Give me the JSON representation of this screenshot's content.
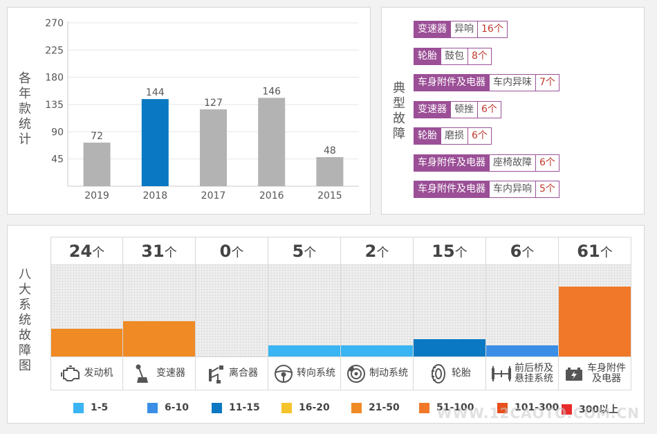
{
  "colors": {
    "bar_default": "#b3b3b3",
    "bar_highlight": "#0a78c2",
    "fault_tag": "#9b4f96",
    "fault_count": "#c0392b"
  },
  "chart_data": [
    {
      "type": "bar",
      "title": "各年款统计",
      "categories": [
        "2019",
        "2018",
        "2017",
        "2016",
        "2015"
      ],
      "values": [
        72,
        144,
        127,
        146,
        48
      ],
      "highlight": "2018",
      "ylim": [
        0,
        270
      ],
      "yticks": [
        45,
        90,
        135,
        180,
        225,
        270
      ],
      "xlabel": "",
      "ylabel": "",
      "grid": true
    },
    {
      "type": "bar",
      "title": "八大系统故障图",
      "categories": [
        "发动机",
        "变速器",
        "离合器",
        "转向系统",
        "制动系统",
        "轮胎",
        "前后桥及悬挂系统",
        "车身附件及电器"
      ],
      "values": [
        24,
        31,
        0,
        5,
        2,
        15,
        6,
        61
      ],
      "unit": "个",
      "legend": [
        {
          "label": "1-5",
          "min": 1,
          "max": 5,
          "color": "#3ab4f2"
        },
        {
          "label": "6-10",
          "min": 6,
          "max": 10,
          "color": "#3a8ee6"
        },
        {
          "label": "11-15",
          "min": 11,
          "max": 15,
          "color": "#0a78c2"
        },
        {
          "label": "16-20",
          "min": 16,
          "max": 20,
          "color": "#f5c32a"
        },
        {
          "label": "21-50",
          "min": 21,
          "max": 50,
          "color": "#f08a24"
        },
        {
          "label": "51-100",
          "min": 51,
          "max": 100,
          "color": "#f07828"
        },
        {
          "label": "101-300",
          "min": 101,
          "max": 300,
          "color": "#e8501e"
        },
        {
          "label": "300以上",
          "min": 301,
          "max": 100000,
          "color": "#e82a2a"
        }
      ]
    }
  ],
  "faults": {
    "title": "典型故障",
    "items": [
      {
        "category": "变速器",
        "name": "异响",
        "count": "16个"
      },
      {
        "category": "轮胎",
        "name": "鼓包",
        "count": "8个"
      },
      {
        "category": "车身附件及电器",
        "name": "车内异味",
        "count": "7个"
      },
      {
        "category": "变速器",
        "name": "顿挫",
        "count": "6个"
      },
      {
        "category": "轮胎",
        "name": "磨损",
        "count": "6个"
      },
      {
        "category": "车身附件及电器",
        "name": "座椅故障",
        "count": "6个"
      },
      {
        "category": "车身附件及电器",
        "name": "车内异响",
        "count": "5个"
      }
    ]
  },
  "systems": {
    "items": [
      {
        "label_lines": [
          "发动机"
        ],
        "icon": "engine-icon"
      },
      {
        "label_lines": [
          "变速器"
        ],
        "icon": "gear-shift-icon"
      },
      {
        "label_lines": [
          "离合器"
        ],
        "icon": "clutch-pedal-icon"
      },
      {
        "label_lines": [
          "转向系统"
        ],
        "icon": "steering-wheel-icon"
      },
      {
        "label_lines": [
          "制动系统"
        ],
        "icon": "brake-disc-icon"
      },
      {
        "label_lines": [
          "轮胎"
        ],
        "icon": "tire-icon"
      },
      {
        "label_lines": [
          "前后桥及",
          "悬挂系统"
        ],
        "icon": "axle-icon"
      },
      {
        "label_lines": [
          "车身附件",
          "及电器"
        ],
        "icon": "battery-icon"
      }
    ]
  },
  "watermark": "WWW.12CAOTO.COM.CN"
}
